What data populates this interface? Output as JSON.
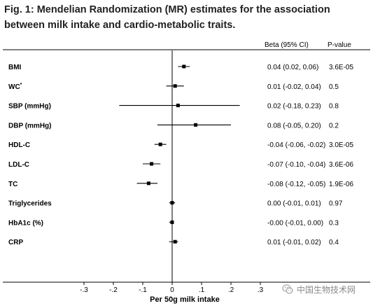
{
  "figure": {
    "title": "Fig. 1: Mendelian Randomization (MR) estimates for the association between milk intake and cardio-metabolic traits."
  },
  "headers": {
    "beta": "Beta (95% CI)",
    "pvalue": "P-value"
  },
  "chart_data": {
    "type": "forest",
    "xlabel": "Per 50g milk intake",
    "xlim": [
      -0.3,
      0.3
    ],
    "ticks": [
      {
        "value": -0.3,
        "label": "-.3"
      },
      {
        "value": -0.2,
        "label": "-.2"
      },
      {
        "value": -0.1,
        "label": "-.1"
      },
      {
        "value": 0,
        "label": "0"
      },
      {
        "value": 0.1,
        "label": ".1"
      },
      {
        "value": 0.2,
        "label": ".2"
      },
      {
        "value": 0.3,
        "label": ".3"
      }
    ],
    "reference_line": 0,
    "rows": [
      {
        "label": "BMI",
        "sup": "",
        "beta": 0.04,
        "lo": 0.02,
        "hi": 0.06,
        "beta_text": "0.04 (0.02, 0.06)",
        "p": "3.6E-05"
      },
      {
        "label": "WC",
        "sup": "*",
        "beta": 0.01,
        "lo": -0.02,
        "hi": 0.04,
        "beta_text": "0.01 (-0.02, 0.04)",
        "p": "0.5"
      },
      {
        "label": "SBP (mmHg)",
        "sup": "",
        "beta": 0.02,
        "lo": -0.18,
        "hi": 0.23,
        "beta_text": "0.02 (-0.18, 0.23)",
        "p": "0.8"
      },
      {
        "label": "DBP (mmHg)",
        "sup": "",
        "beta": 0.08,
        "lo": -0.05,
        "hi": 0.2,
        "beta_text": "0.08 (-0.05, 0.20)",
        "p": "0.2"
      },
      {
        "label": "HDL-C",
        "sup": "",
        "beta": -0.04,
        "lo": -0.06,
        "hi": -0.02,
        "beta_text": "-0.04 (-0.06, -0.02)",
        "p": "3.0E-05"
      },
      {
        "label": "LDL-C",
        "sup": "",
        "beta": -0.07,
        "lo": -0.1,
        "hi": -0.04,
        "beta_text": "-0.07 (-0.10, -0.04)",
        "p": "3.6E-06"
      },
      {
        "label": "TC",
        "sup": "",
        "beta": -0.08,
        "lo": -0.12,
        "hi": -0.05,
        "beta_text": "-0.08 (-0.12, -0.05)",
        "p": "1.9E-06"
      },
      {
        "label": "Triglycerides",
        "sup": "",
        "beta": 0.0,
        "lo": -0.01,
        "hi": 0.01,
        "beta_text": "0.00 (-0.01, 0.01)",
        "p": "0.97"
      },
      {
        "label": "HbA1c (%)",
        "sup": "",
        "beta": -0.0,
        "lo": -0.01,
        "hi": 0.0,
        "beta_text": "-0.00 (-0.01, 0.00)",
        "p": "0.3"
      },
      {
        "label": "CRP",
        "sup": "",
        "beta": 0.01,
        "lo": -0.01,
        "hi": 0.02,
        "beta_text": "0.01 (-0.01, 0.02)",
        "p": "0.4"
      }
    ]
  },
  "watermark": {
    "text": "中国生物技术网",
    "icon": "wechat-icon"
  }
}
